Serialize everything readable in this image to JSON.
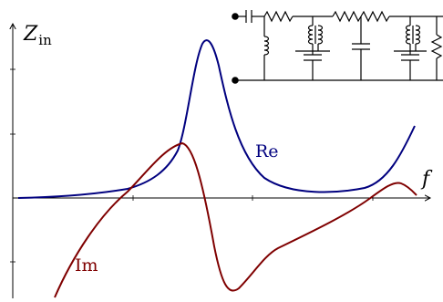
{
  "plot": {
    "y_axis_label": "Z",
    "y_axis_subscript": "in",
    "x_axis_label": "f",
    "curves": [
      {
        "label": "Re",
        "color": "#00007f"
      },
      {
        "label": "Im",
        "color": "#7f0000"
      }
    ]
  },
  "circuit": {
    "components": [
      "capacitor",
      "resistor",
      "inductor",
      "capacitor",
      "resistor",
      "resistor",
      "capacitor",
      "inductor",
      "capacitor",
      "resistor"
    ]
  }
}
